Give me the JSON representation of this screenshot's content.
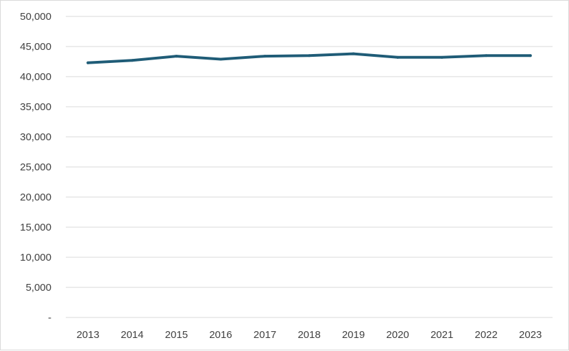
{
  "chart_data": {
    "type": "line",
    "title": "",
    "xlabel": "",
    "ylabel": "",
    "categories": [
      "2013",
      "2014",
      "2015",
      "2016",
      "2017",
      "2018",
      "2019",
      "2020",
      "2021",
      "2022",
      "2023"
    ],
    "series": [
      {
        "values": [
          42300,
          42700,
          43400,
          42900,
          43400,
          43500,
          43800,
          43200,
          43200,
          43500,
          43500
        ]
      }
    ],
    "ylim": [
      0,
      50000
    ],
    "yticks": [
      {
        "value": 0,
        "label": "-"
      },
      {
        "value": 5000,
        "label": "5,000"
      },
      {
        "value": 10000,
        "label": "10,000"
      },
      {
        "value": 15000,
        "label": "15,000"
      },
      {
        "value": 20000,
        "label": "20,000"
      },
      {
        "value": 25000,
        "label": "25,000"
      },
      {
        "value": 30000,
        "label": "30,000"
      },
      {
        "value": 35000,
        "label": "35,000"
      },
      {
        "value": 40000,
        "label": "40,000"
      },
      {
        "value": 45000,
        "label": "45,000"
      },
      {
        "value": 50000,
        "label": "50,000"
      }
    ],
    "grid": true,
    "legend": "none",
    "line_color": "#1f5c77",
    "grid_color": "#d9d9d9",
    "text_color": "#404040"
  }
}
